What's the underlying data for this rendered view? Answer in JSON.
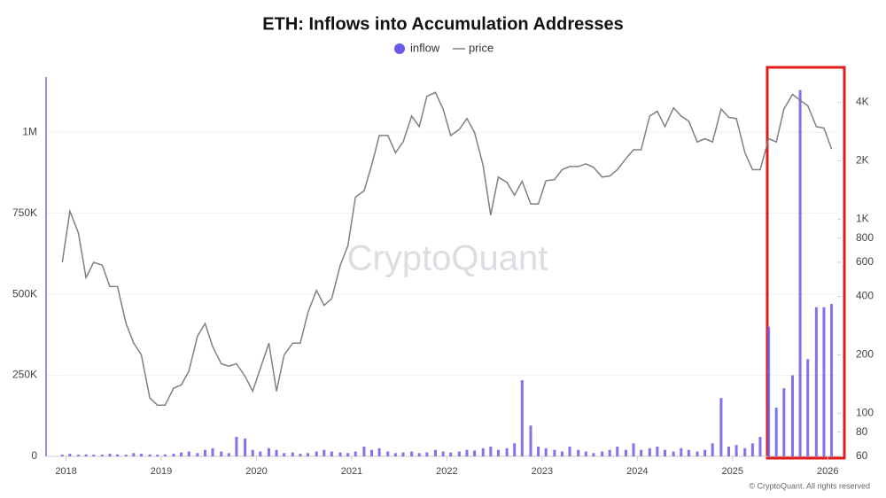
{
  "chart_data": {
    "type": "bar-line",
    "title": "ETH: Inflows into Accumulation Addresses",
    "watermark": "CryptoQuant",
    "footer": "© CryptoQuant. All rights reserved",
    "x": [
      2017.96,
      2018.04,
      2018.13,
      2018.21,
      2018.29,
      2018.38,
      2018.46,
      2018.54,
      2018.63,
      2018.71,
      2018.79,
      2018.88,
      2018.96,
      2019.04,
      2019.13,
      2019.21,
      2019.29,
      2019.38,
      2019.46,
      2019.54,
      2019.63,
      2019.71,
      2019.79,
      2019.88,
      2019.96,
      2020.04,
      2020.13,
      2020.21,
      2020.29,
      2020.38,
      2020.46,
      2020.54,
      2020.63,
      2020.71,
      2020.79,
      2020.88,
      2020.96,
      2021.04,
      2021.13,
      2021.21,
      2021.29,
      2021.38,
      2021.46,
      2021.54,
      2021.63,
      2021.71,
      2021.79,
      2021.88,
      2021.96,
      2022.04,
      2022.13,
      2022.21,
      2022.29,
      2022.38,
      2022.46,
      2022.54,
      2022.63,
      2022.71,
      2022.79,
      2022.88,
      2022.96,
      2023.04,
      2023.13,
      2023.21,
      2023.29,
      2023.38,
      2023.46,
      2023.54,
      2023.63,
      2023.71,
      2023.79,
      2023.88,
      2023.96,
      2024.04,
      2024.13,
      2024.21,
      2024.29,
      2024.38,
      2024.46,
      2024.54,
      2024.63,
      2024.71,
      2024.79,
      2024.88,
      2024.96,
      2025.04,
      2025.13,
      2025.21,
      2025.29,
      2025.38,
      2025.46,
      2025.54,
      2025.63,
      2025.71,
      2025.79,
      2025.88,
      2025.96,
      2026.04
    ],
    "series": [
      {
        "name": "inflow",
        "type": "bar",
        "color": "#6a5ae8",
        "values": [
          5000,
          8000,
          5000,
          6000,
          5000,
          5000,
          8000,
          6000,
          5000,
          10000,
          8000,
          6000,
          5000,
          6000,
          8000,
          12000,
          15000,
          10000,
          20000,
          25000,
          15000,
          10000,
          60000,
          55000,
          20000,
          15000,
          25000,
          20000,
          10000,
          12000,
          8000,
          10000,
          15000,
          20000,
          15000,
          12000,
          10000,
          15000,
          30000,
          20000,
          25000,
          15000,
          10000,
          12000,
          15000,
          10000,
          12000,
          20000,
          15000,
          12000,
          15000,
          20000,
          18000,
          25000,
          30000,
          20000,
          25000,
          40000,
          235000,
          95000,
          30000,
          25000,
          20000,
          15000,
          30000,
          20000,
          15000,
          10000,
          15000,
          20000,
          30000,
          20000,
          40000,
          20000,
          25000,
          30000,
          20000,
          15000,
          25000,
          20000,
          15000,
          20000,
          40000,
          180000,
          30000,
          35000,
          25000,
          40000,
          60000,
          400000,
          150000,
          210000,
          250000,
          1130000,
          300000,
          460000,
          460000,
          470000
        ]
      },
      {
        "name": "price",
        "type": "line",
        "axis": "y2",
        "color": "#808084",
        "values": [
          600,
          1100,
          850,
          500,
          600,
          580,
          450,
          450,
          290,
          230,
          200,
          120,
          110,
          110,
          135,
          140,
          165,
          250,
          290,
          220,
          180,
          175,
          180,
          155,
          130,
          170,
          230,
          130,
          200,
          230,
          230,
          330,
          430,
          360,
          390,
          580,
          730,
          1300,
          1400,
          1900,
          2700,
          2700,
          2200,
          2500,
          3400,
          3000,
          4300,
          4500,
          3700,
          2700,
          2900,
          3300,
          2800,
          1900,
          1050,
          1650,
          1550,
          1330,
          1570,
          1200,
          1200,
          1580,
          1600,
          1800,
          1870,
          1870,
          1930,
          1850,
          1650,
          1670,
          1800,
          2050,
          2280,
          2280,
          3400,
          3600,
          3000,
          3750,
          3400,
          3200,
          2500,
          2600,
          2500,
          3700,
          3350,
          3300,
          2200,
          1800,
          1800,
          2600,
          2500,
          3700,
          4400,
          4100,
          3850,
          3000,
          2950,
          2300
        ]
      }
    ],
    "xlim": [
      2017.79,
      2026.1
    ],
    "xticks": [
      2018,
      2019,
      2020,
      2021,
      2022,
      2023,
      2024,
      2025,
      2026
    ],
    "ylim": [
      0,
      1170000
    ],
    "yticks": [
      0,
      {
        "value": 250000,
        "label": "250K"
      },
      {
        "value": 500000,
        "label": "500K"
      },
      {
        "value": 750000,
        "label": "750K"
      },
      {
        "value": 1000000,
        "label": "1M"
      }
    ],
    "y2lim": [
      60,
      5400
    ],
    "y2scale": "log",
    "y2ticks": [
      60,
      80,
      100,
      200,
      400,
      600,
      800,
      {
        "value": 1000,
        "label": "1K"
      },
      {
        "value": 2000,
        "label": "2K"
      },
      {
        "value": 4000,
        "label": "4K"
      }
    ],
    "grid": true
  }
}
